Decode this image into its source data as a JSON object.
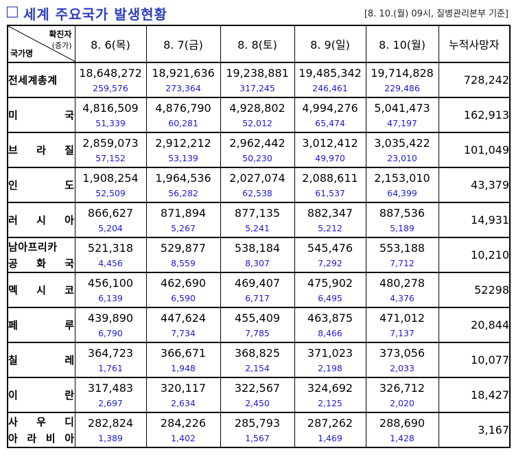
{
  "title": {
    "box": "□",
    "text": "세계 주요국가 발생현황",
    "basis": "[8. 10.(월) 09시, 질병관리본부 기준]"
  },
  "colors": {
    "title": "#2b3fc2",
    "increase": "#1a1ad9"
  },
  "header": {
    "diag_top": "확진자",
    "diag_mid": "(증가)",
    "diag_bottom": "국가명",
    "dates": [
      "8. 6(목)",
      "8. 7(금)",
      "8. 8(토)",
      "8. 9(일)",
      "8. 10(월)"
    ],
    "deaths": "누적사망자"
  },
  "rows": [
    {
      "name": [
        "전세계총계"
      ],
      "cases": [
        "18,648,272",
        "18,921,636",
        "19,238,881",
        "19,485,342",
        "19,714,828"
      ],
      "increase": [
        "259,576",
        "273,364",
        "317,245",
        "246,461",
        "229,486"
      ],
      "deaths": "728,242"
    },
    {
      "name": [
        "미 국"
      ],
      "cases": [
        "4,816,509",
        "4,876,790",
        "4,928,802",
        "4,994,276",
        "5,041,473"
      ],
      "increase": [
        "51,339",
        "60,281",
        "52,012",
        "65,474",
        "47,197"
      ],
      "deaths": "162,913"
    },
    {
      "name": [
        "브 라 질"
      ],
      "cases": [
        "2,859,073",
        "2,912,212",
        "2,962,442",
        "3,012,412",
        "3,035,422"
      ],
      "increase": [
        "57,152",
        "53,139",
        "50,230",
        "49,970",
        "23,010"
      ],
      "deaths": "101,049"
    },
    {
      "name": [
        "인 도"
      ],
      "cases": [
        "1,908,254",
        "1,964,536",
        "2,027,074",
        "2,088,611",
        "2,153,010"
      ],
      "increase": [
        "52,509",
        "56,282",
        "62,538",
        "61,537",
        "64,399"
      ],
      "deaths": "43,379"
    },
    {
      "name": [
        "러 시 아"
      ],
      "cases": [
        "866,627",
        "871,894",
        "877,135",
        "882,347",
        "887,536"
      ],
      "increase": [
        "5,204",
        "5,267",
        "5,241",
        "5,212",
        "5,189"
      ],
      "deaths": "14,931"
    },
    {
      "name": [
        "남아프리카",
        "공 화 국"
      ],
      "cases": [
        "521,318",
        "529,877",
        "538,184",
        "545,476",
        "553,188"
      ],
      "increase": [
        "4,456",
        "8,559",
        "8,307",
        "7,292",
        "7,712"
      ],
      "deaths": "10,210"
    },
    {
      "name": [
        "멕 시 코"
      ],
      "cases": [
        "456,100",
        "462,690",
        "469,407",
        "475,902",
        "480,278"
      ],
      "increase": [
        "6,139",
        "6,590",
        "6,717",
        "6,495",
        "4,376"
      ],
      "deaths": "52298"
    },
    {
      "name": [
        "페 루"
      ],
      "cases": [
        "439,890",
        "447,624",
        "455,409",
        "463,875",
        "471,012"
      ],
      "increase": [
        "6,790",
        "7,734",
        "7,785",
        "8,466",
        "7,137"
      ],
      "deaths": "20,844"
    },
    {
      "name": [
        "칠 레"
      ],
      "cases": [
        "364,723",
        "366,671",
        "368,825",
        "371,023",
        "373,056"
      ],
      "increase": [
        "1,761",
        "1,948",
        "2,154",
        "2,198",
        "2,033"
      ],
      "deaths": "10,077"
    },
    {
      "name": [
        "이 란"
      ],
      "cases": [
        "317,483",
        "320,117",
        "322,567",
        "324,692",
        "326,712"
      ],
      "increase": [
        "2,697",
        "2,634",
        "2,450",
        "2,125",
        "2,020"
      ],
      "deaths": "18,427"
    },
    {
      "name": [
        "사 우 디",
        "아 라 비 아"
      ],
      "cases": [
        "282,824",
        "284,226",
        "285,793",
        "287,262",
        "288,690"
      ],
      "increase": [
        "1,389",
        "1,402",
        "1,567",
        "1,469",
        "1,428"
      ],
      "deaths": "3,167"
    }
  ]
}
